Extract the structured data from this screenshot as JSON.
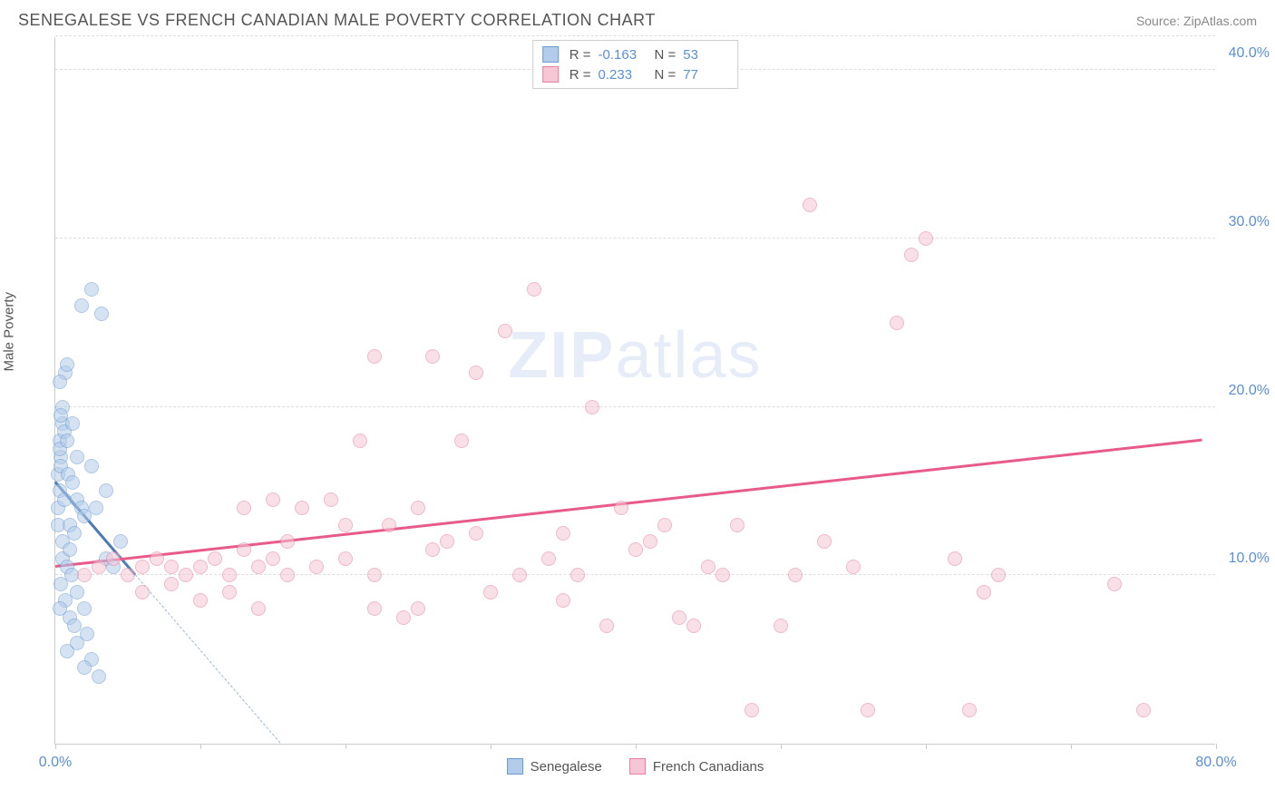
{
  "title": "SENEGALESE VS FRENCH CANADIAN MALE POVERTY CORRELATION CHART",
  "source": "Source: ZipAtlas.com",
  "watermark_a": "ZIP",
  "watermark_b": "atlas",
  "y_axis_label": "Male Poverty",
  "chart": {
    "type": "scatter",
    "xlim": [
      0,
      80
    ],
    "ylim": [
      0,
      42
    ],
    "x_ticks": [
      0,
      10,
      20,
      30,
      40,
      50,
      60,
      70,
      80
    ],
    "x_tick_labels": {
      "0": "0.0%",
      "80": "80.0%"
    },
    "y_gridlines": [
      10,
      20,
      30,
      40,
      42
    ],
    "y_tick_labels": {
      "10": "10.0%",
      "20": "20.0%",
      "30": "30.0%",
      "40": "40.0%"
    },
    "background_color": "#ffffff",
    "grid_color": "#dddddd",
    "axis_color": "#cccccc",
    "tick_label_color": "#5b8fd6",
    "marker_radius": 8,
    "marker_stroke_width": 1.5,
    "series": [
      {
        "name": "Senegalese",
        "fill_color": "#b3cce9",
        "stroke_color": "#6b9bd1",
        "fill_opacity": 0.55,
        "R": "-0.163",
        "N": "53",
        "trend": {
          "x1": 0,
          "y1": 15.5,
          "x2": 5.5,
          "y2": 10.0,
          "color": "#4a7bb5",
          "width": 2.5
        },
        "trend_dashed": {
          "x1": 5.5,
          "y1": 10.0,
          "x2": 15.5,
          "y2": 0,
          "color": "#9bb8d6"
        },
        "points": [
          [
            0.2,
            14
          ],
          [
            0.3,
            15
          ],
          [
            0.2,
            16
          ],
          [
            0.4,
            17
          ],
          [
            0.3,
            18
          ],
          [
            0.5,
            19
          ],
          [
            0.2,
            13
          ],
          [
            0.6,
            14.5
          ],
          [
            0.4,
            16.5
          ],
          [
            0.3,
            17.5
          ],
          [
            0.5,
            20
          ],
          [
            0.7,
            22
          ],
          [
            0.3,
            21.5
          ],
          [
            0.8,
            22.5
          ],
          [
            0.4,
            19.5
          ],
          [
            0.6,
            18.5
          ],
          [
            0.9,
            16
          ],
          [
            1.2,
            15.5
          ],
          [
            1.5,
            14.5
          ],
          [
            1.8,
            14
          ],
          [
            1.0,
            13
          ],
          [
            1.3,
            12.5
          ],
          [
            0.5,
            11
          ],
          [
            0.8,
            10.5
          ],
          [
            1.1,
            10
          ],
          [
            0.4,
            9.5
          ],
          [
            1.5,
            9
          ],
          [
            0.7,
            8.5
          ],
          [
            2.0,
            8
          ],
          [
            1.0,
            7.5
          ],
          [
            1.3,
            7
          ],
          [
            2.2,
            6.5
          ],
          [
            1.5,
            6
          ],
          [
            0.8,
            5.5
          ],
          [
            2.5,
            5
          ],
          [
            2.0,
            4.5
          ],
          [
            3.0,
            4
          ],
          [
            3.5,
            11
          ],
          [
            4.0,
            10.5
          ],
          [
            4.5,
            12
          ],
          [
            1.8,
            26
          ],
          [
            2.5,
            27
          ],
          [
            3.2,
            25.5
          ],
          [
            0.5,
            12
          ],
          [
            1.0,
            11.5
          ],
          [
            2.0,
            13.5
          ],
          [
            2.8,
            14
          ],
          [
            3.5,
            15
          ],
          [
            0.3,
            8
          ],
          [
            1.5,
            17
          ],
          [
            0.8,
            18
          ],
          [
            2.5,
            16.5
          ],
          [
            1.2,
            19
          ]
        ]
      },
      {
        "name": "French Canadians",
        "fill_color": "#f5c6d3",
        "stroke_color": "#e87ea3",
        "fill_opacity": 0.55,
        "R": "0.233",
        "N": "77",
        "trend": {
          "x1": 0,
          "y1": 10.5,
          "x2": 79,
          "y2": 18.0,
          "color": "#e85a8a",
          "width": 2.5
        },
        "points": [
          [
            2,
            10
          ],
          [
            3,
            10.5
          ],
          [
            4,
            11
          ],
          [
            5,
            10
          ],
          [
            6,
            10.5
          ],
          [
            7,
            11
          ],
          [
            8,
            10.5
          ],
          [
            9,
            10
          ],
          [
            10,
            10.5
          ],
          [
            11,
            11
          ],
          [
            12,
            10
          ],
          [
            13,
            11.5
          ],
          [
            14,
            10.5
          ],
          [
            15,
            11
          ],
          [
            16,
            12
          ],
          [
            13,
            14
          ],
          [
            15,
            14.5
          ],
          [
            17,
            14
          ],
          [
            19,
            14.5
          ],
          [
            16,
            10
          ],
          [
            18,
            10.5
          ],
          [
            20,
            11
          ],
          [
            20,
            13
          ],
          [
            21,
            18
          ],
          [
            22,
            8
          ],
          [
            22,
            23
          ],
          [
            23,
            13
          ],
          [
            24,
            7.5
          ],
          [
            25,
            14
          ],
          [
            25,
            8
          ],
          [
            26,
            23
          ],
          [
            27,
            12
          ],
          [
            28,
            18
          ],
          [
            29,
            12.5
          ],
          [
            29,
            22
          ],
          [
            30,
            9
          ],
          [
            31,
            24.5
          ],
          [
            32,
            10
          ],
          [
            33,
            27
          ],
          [
            34,
            11
          ],
          [
            35,
            8.5
          ],
          [
            35,
            12.5
          ],
          [
            36,
            10
          ],
          [
            37,
            20
          ],
          [
            38,
            7
          ],
          [
            39,
            14
          ],
          [
            40,
            11.5
          ],
          [
            41,
            12
          ],
          [
            42,
            13
          ],
          [
            43,
            7.5
          ],
          [
            44,
            7
          ],
          [
            45,
            10.5
          ],
          [
            46,
            10
          ],
          [
            47,
            13
          ],
          [
            48,
            2
          ],
          [
            50,
            7
          ],
          [
            51,
            10
          ],
          [
            52,
            32
          ],
          [
            53,
            12
          ],
          [
            55,
            10.5
          ],
          [
            56,
            2
          ],
          [
            58,
            25
          ],
          [
            59,
            29
          ],
          [
            60,
            30
          ],
          [
            62,
            11
          ],
          [
            63,
            2
          ],
          [
            64,
            9
          ],
          [
            65,
            10
          ],
          [
            73,
            9.5
          ],
          [
            75,
            2
          ],
          [
            6,
            9
          ],
          [
            8,
            9.5
          ],
          [
            10,
            8.5
          ],
          [
            12,
            9
          ],
          [
            14,
            8
          ],
          [
            22,
            10
          ],
          [
            26,
            11.5
          ]
        ]
      }
    ],
    "stats_box": {
      "rows": [
        {
          "swatch_fill": "#b3cce9",
          "swatch_stroke": "#6b9bd1",
          "r_label": "R =",
          "r_val": "-0.163",
          "n_label": "N =",
          "n_val": "53"
        },
        {
          "swatch_fill": "#f5c6d3",
          "swatch_stroke": "#e87ea3",
          "r_label": "R =",
          "r_val": "0.233",
          "n_label": "N =",
          "n_val": "77"
        }
      ]
    },
    "legend": [
      {
        "swatch_fill": "#b3cce9",
        "swatch_stroke": "#6b9bd1",
        "label": "Senegalese"
      },
      {
        "swatch_fill": "#f5c6d3",
        "swatch_stroke": "#e87ea3",
        "label": "French Canadians"
      }
    ]
  }
}
